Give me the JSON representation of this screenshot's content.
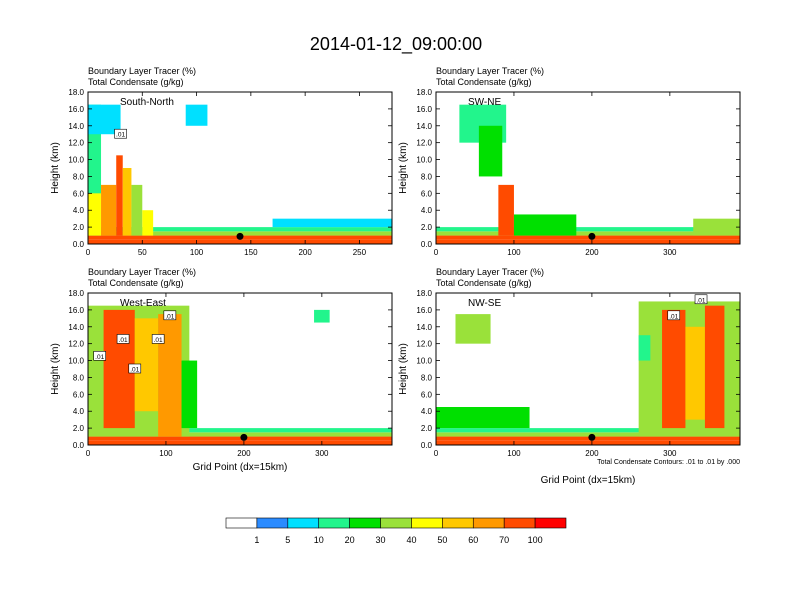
{
  "title": "2014-01-12_09:00:00",
  "chart_data": [
    {
      "type": "heatmap",
      "name": "South-North",
      "label_line1": "Boundary Layer Tracer   (%)",
      "label_line2": "Total Condensate   (g/kg)",
      "ylabel": "Height (km)",
      "xlabel": "",
      "xlim": [
        0,
        280
      ],
      "ylim": [
        0,
        18
      ],
      "xticks": [
        0,
        50,
        100,
        150,
        200,
        250
      ],
      "yticks": [
        "0.0",
        "2.0",
        "4.0",
        "6.0",
        "8.0",
        "10.0",
        "12.0",
        "14.0",
        "16.0",
        "18.0"
      ],
      "marker_x": 140,
      "contour_labels": [
        {
          "text": ".01",
          "x": 30,
          "y": 13
        }
      ],
      "regions": [
        {
          "x0": 0,
          "x1": 280,
          "y0": 0,
          "y1": 0.5,
          "v": 95
        },
        {
          "x0": 0,
          "x1": 280,
          "y0": 0.5,
          "y1": 1.0,
          "v": 70
        },
        {
          "x0": 0,
          "x1": 280,
          "y0": 1.0,
          "y1": 1.5,
          "v": 30
        },
        {
          "x0": 0,
          "x1": 280,
          "y0": 1.5,
          "y1": 2.0,
          "v": 12
        },
        {
          "x0": 170,
          "x1": 280,
          "y0": 2.0,
          "y1": 3.0,
          "v": 6
        },
        {
          "x0": 0,
          "x1": 12,
          "y0": 1.0,
          "y1": 16.5,
          "v": 15
        },
        {
          "x0": 0,
          "x1": 12,
          "y0": 1.0,
          "y1": 6,
          "v": 40
        },
        {
          "x0": 12,
          "x1": 26,
          "y0": 1.0,
          "y1": 7,
          "v": 60
        },
        {
          "x0": 26,
          "x1": 32,
          "y0": 1.0,
          "y1": 10.5,
          "v": 80
        },
        {
          "x0": 32,
          "x1": 40,
          "y0": 1.0,
          "y1": 9,
          "v": 55
        },
        {
          "x0": 40,
          "x1": 50,
          "y0": 1.0,
          "y1": 7,
          "v": 30
        },
        {
          "x0": 50,
          "x1": 60,
          "y0": 1.0,
          "y1": 4,
          "v": 45
        },
        {
          "x0": 0,
          "x1": 30,
          "y0": 13,
          "y1": 16.5,
          "v": 8
        },
        {
          "x0": 90,
          "x1": 110,
          "y0": 14,
          "y1": 16.5,
          "v": 5
        }
      ]
    },
    {
      "type": "heatmap",
      "name": "SW-NE",
      "label_line1": "Boundary Layer Tracer   (%)",
      "label_line2": "Total Condensate   (g/kg)",
      "ylabel": "Height (km)",
      "xlabel": "",
      "xlim": [
        0,
        390
      ],
      "ylim": [
        0,
        18
      ],
      "xticks": [
        0,
        100,
        200,
        300
      ],
      "yticks": [
        "0.0",
        "2.0",
        "4.0",
        "6.0",
        "8.0",
        "10.0",
        "12.0",
        "14.0",
        "16.0",
        "18.0"
      ],
      "marker_x": 200,
      "contour_labels": [],
      "regions": [
        {
          "x0": 0,
          "x1": 390,
          "y0": 0,
          "y1": 0.5,
          "v": 95
        },
        {
          "x0": 0,
          "x1": 390,
          "y0": 0.5,
          "y1": 1.0,
          "v": 70
        },
        {
          "x0": 0,
          "x1": 390,
          "y0": 1.0,
          "y1": 1.5,
          "v": 30
        },
        {
          "x0": 0,
          "x1": 390,
          "y0": 1.5,
          "y1": 2.0,
          "v": 12
        },
        {
          "x0": 30,
          "x1": 90,
          "y0": 12,
          "y1": 16.5,
          "v": 12
        },
        {
          "x0": 55,
          "x1": 85,
          "y0": 8,
          "y1": 14,
          "v": 20
        },
        {
          "x0": 80,
          "x1": 100,
          "y0": 1.0,
          "y1": 7,
          "v": 70
        },
        {
          "x0": 100,
          "x1": 180,
          "y0": 1.0,
          "y1": 3.5,
          "v": 20
        },
        {
          "x0": 330,
          "x1": 390,
          "y0": 1.0,
          "y1": 3,
          "v": 30
        }
      ]
    },
    {
      "type": "heatmap",
      "name": "West-East",
      "label_line1": "Boundary Layer Tracer   (%)",
      "label_line2": "Total Condensate   (g/kg)",
      "ylabel": "Height (km)",
      "xlabel": "Grid Point (dx=15km)",
      "xlim": [
        0,
        390
      ],
      "ylim": [
        0,
        18
      ],
      "xticks": [
        0,
        100,
        200,
        300
      ],
      "yticks": [
        "0.0",
        "2.0",
        "4.0",
        "6.0",
        "8.0",
        "10.0",
        "12.0",
        "14.0",
        "16.0",
        "18.0"
      ],
      "marker_x": 200,
      "contour_labels": [
        {
          "text": ".01",
          "x": 105,
          "y": 15.3
        },
        {
          "text": ".01",
          "x": 45,
          "y": 12.5
        },
        {
          "text": ".01",
          "x": 90,
          "y": 12.5
        },
        {
          "text": ".01",
          "x": 15,
          "y": 10.5
        },
        {
          "text": ".01",
          "x": 60,
          "y": 9
        }
      ],
      "regions": [
        {
          "x0": 0,
          "x1": 390,
          "y0": 0,
          "y1": 0.5,
          "v": 95
        },
        {
          "x0": 0,
          "x1": 390,
          "y0": 0.5,
          "y1": 1.0,
          "v": 70
        },
        {
          "x0": 0,
          "x1": 390,
          "y0": 1.0,
          "y1": 1.5,
          "v": 30
        },
        {
          "x0": 0,
          "x1": 390,
          "y0": 1.5,
          "y1": 2.0,
          "v": 12
        },
        {
          "x0": 0,
          "x1": 130,
          "y0": 1.0,
          "y1": 16.5,
          "v": 35
        },
        {
          "x0": 20,
          "x1": 60,
          "y0": 2,
          "y1": 16,
          "v": 75
        },
        {
          "x0": 60,
          "x1": 90,
          "y0": 4,
          "y1": 15,
          "v": 50
        },
        {
          "x0": 90,
          "x1": 120,
          "y0": 1.0,
          "y1": 15.5,
          "v": 60
        },
        {
          "x0": 120,
          "x1": 140,
          "y0": 2,
          "y1": 10,
          "v": 20
        },
        {
          "x0": 290,
          "x1": 310,
          "y0": 14.5,
          "y1": 16,
          "v": 12
        }
      ]
    },
    {
      "type": "heatmap",
      "name": "NW-SE",
      "label_line1": "Boundary Layer Tracer   (%)",
      "label_line2": "Total Condensate   (g/kg)",
      "ylabel": "Height (km)",
      "xlabel": "Grid Point (dx=15km)",
      "contour_note": "Total Condensate Contours: .01 to .01 by .000",
      "xlim": [
        0,
        390
      ],
      "ylim": [
        0,
        18
      ],
      "xticks": [
        0,
        100,
        200,
        300
      ],
      "yticks": [
        "0.0",
        "2.0",
        "4.0",
        "6.0",
        "8.0",
        "10.0",
        "12.0",
        "14.0",
        "16.0",
        "18.0"
      ],
      "marker_x": 200,
      "contour_labels": [
        {
          "text": ".01",
          "x": 340,
          "y": 17.2
        },
        {
          "text": ".01",
          "x": 305,
          "y": 15.3
        }
      ],
      "regions": [
        {
          "x0": 0,
          "x1": 390,
          "y0": 0,
          "y1": 0.5,
          "v": 95
        },
        {
          "x0": 0,
          "x1": 390,
          "y0": 0.5,
          "y1": 1.0,
          "v": 70
        },
        {
          "x0": 0,
          "x1": 390,
          "y0": 1.0,
          "y1": 1.5,
          "v": 30
        },
        {
          "x0": 0,
          "x1": 390,
          "y0": 1.5,
          "y1": 2.0,
          "v": 12
        },
        {
          "x0": 0,
          "x1": 120,
          "y0": 2,
          "y1": 4.5,
          "v": 25
        },
        {
          "x0": 25,
          "x1": 70,
          "y0": 12,
          "y1": 15.5,
          "v": 30
        },
        {
          "x0": 260,
          "x1": 390,
          "y0": 1.0,
          "y1": 17,
          "v": 30
        },
        {
          "x0": 290,
          "x1": 320,
          "y0": 2,
          "y1": 16,
          "v": 75
        },
        {
          "x0": 320,
          "x1": 345,
          "y0": 3,
          "y1": 14,
          "v": 50
        },
        {
          "x0": 345,
          "x1": 370,
          "y0": 2,
          "y1": 16.5,
          "v": 70
        },
        {
          "x0": 260,
          "x1": 275,
          "y0": 10,
          "y1": 13,
          "v": 15
        }
      ]
    }
  ],
  "colorbar": {
    "labels": [
      "1",
      "5",
      "10",
      "20",
      "30",
      "40",
      "50",
      "60",
      "70",
      "100"
    ],
    "bins": [
      {
        "max": 1,
        "color": "#ffffff"
      },
      {
        "max": 5,
        "color": "#2b8bff"
      },
      {
        "max": 10,
        "color": "#00e0ff"
      },
      {
        "max": 20,
        "color": "#22f58c"
      },
      {
        "max": 30,
        "color": "#00e000"
      },
      {
        "max": 40,
        "color": "#9ae13a"
      },
      {
        "max": 50,
        "color": "#ffff00"
      },
      {
        "max": 60,
        "color": "#ffc800"
      },
      {
        "max": 70,
        "color": "#ff9900"
      },
      {
        "max": 100,
        "color": "#ff4b00"
      },
      {
        "max": 1000,
        "color": "#ff0000"
      }
    ]
  }
}
